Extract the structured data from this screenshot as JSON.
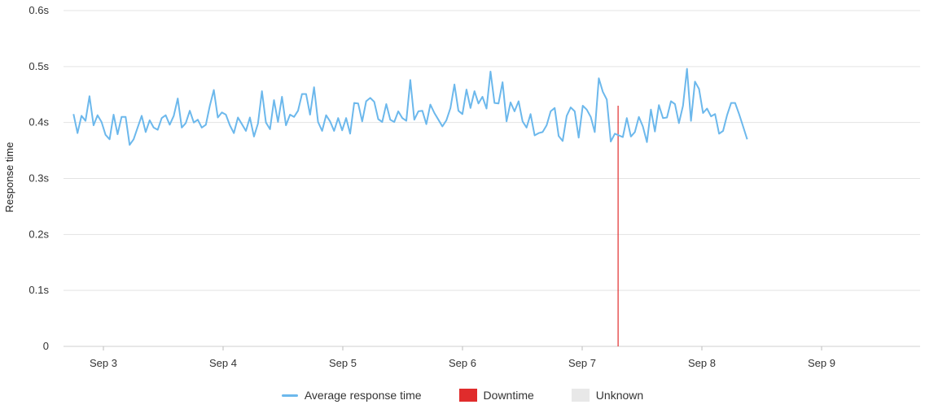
{
  "chart_data": {
    "type": "line",
    "title": "",
    "xlabel": "",
    "ylabel": "Response time",
    "ylim": [
      0,
      0.6
    ],
    "y_ticks": [
      "0",
      "0.1s",
      "0.2s",
      "0.3s",
      "0.4s",
      "0.5s",
      "0.6s"
    ],
    "y_tick_values": [
      0,
      0.1,
      0.2,
      0.3,
      0.4,
      0.5,
      0.6
    ],
    "x_ticks": [
      "Sep 3",
      "Sep 4",
      "Sep 5",
      "Sep 6",
      "Sep 7",
      "Sep 8",
      "Sep 9"
    ],
    "x_range": [
      2.75,
      9.75
    ],
    "grid": true,
    "legend": "bottom-center",
    "series": [
      {
        "name": "Average response time",
        "color": "#6cb8ec",
        "x_start": 2.75,
        "x_step": 0.0335,
        "values": [
          0.415,
          0.381,
          0.412,
          0.403,
          0.447,
          0.395,
          0.413,
          0.401,
          0.378,
          0.37,
          0.414,
          0.379,
          0.41,
          0.41,
          0.36,
          0.37,
          0.391,
          0.412,
          0.383,
          0.404,
          0.391,
          0.387,
          0.408,
          0.413,
          0.396,
          0.412,
          0.443,
          0.391,
          0.399,
          0.421,
          0.4,
          0.405,
          0.391,
          0.396,
          0.43,
          0.458,
          0.409,
          0.418,
          0.414,
          0.395,
          0.381,
          0.409,
          0.397,
          0.385,
          0.409,
          0.375,
          0.398,
          0.456,
          0.4,
          0.388,
          0.44,
          0.401,
          0.446,
          0.395,
          0.414,
          0.41,
          0.421,
          0.451,
          0.451,
          0.414,
          0.463,
          0.401,
          0.385,
          0.413,
          0.402,
          0.385,
          0.408,
          0.386,
          0.408,
          0.38,
          0.435,
          0.434,
          0.402,
          0.438,
          0.444,
          0.437,
          0.406,
          0.401,
          0.433,
          0.405,
          0.401,
          0.42,
          0.408,
          0.403,
          0.476,
          0.405,
          0.42,
          0.421,
          0.397,
          0.432,
          0.417,
          0.405,
          0.393,
          0.404,
          0.426,
          0.468,
          0.421,
          0.415,
          0.459,
          0.426,
          0.456,
          0.434,
          0.446,
          0.425,
          0.491,
          0.435,
          0.434,
          0.472,
          0.402,
          0.436,
          0.42,
          0.438,
          0.402,
          0.391,
          0.415,
          0.377,
          0.381,
          0.383,
          0.395,
          0.42,
          0.426,
          0.376,
          0.367,
          0.412,
          0.427,
          0.42,
          0.373,
          0.43,
          0.423,
          0.41,
          0.383,
          0.479,
          0.455,
          0.441,
          0.366,
          0.38,
          0.377,
          0.374,
          0.408,
          0.375,
          0.383,
          0.41,
          0.393,
          0.365,
          0.423,
          0.384,
          0.431,
          0.408,
          0.409,
          0.438,
          0.433,
          0.399,
          0.43,
          0.496,
          0.403,
          0.473,
          0.46,
          0.417,
          0.425,
          0.411,
          0.415,
          0.38,
          0.385,
          0.413,
          0.435,
          0.435,
          0.415,
          0.393,
          0.37
        ]
      }
    ],
    "downtime": [
      {
        "x": 7.3,
        "from": 0,
        "to": 0.43
      }
    ],
    "legend_entries": [
      {
        "label": "Average response time",
        "kind": "line",
        "color": "#6cb8ec"
      },
      {
        "label": "Downtime",
        "kind": "box",
        "color": "#e02c2c"
      },
      {
        "label": "Unknown",
        "kind": "box",
        "color": "#e8e8e8"
      }
    ]
  }
}
